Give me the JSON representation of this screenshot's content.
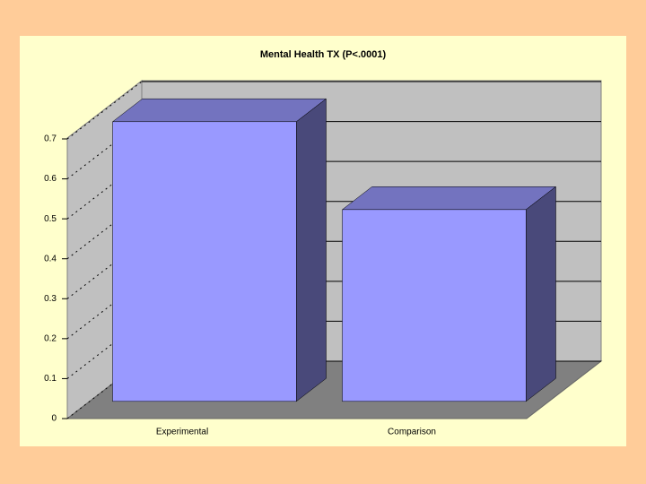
{
  "chart_data": {
    "type": "bar3d",
    "title": "Mental Health TX (P<.0001)",
    "categories": [
      "Experimental",
      "Comparison"
    ],
    "values": [
      0.7,
      0.48
    ],
    "color": "#9999ff",
    "ylim": [
      0,
      0.7
    ],
    "yticks": [
      0,
      0.1,
      0.2,
      0.3,
      0.4,
      0.5,
      0.6,
      0.7
    ],
    "grid": true
  }
}
